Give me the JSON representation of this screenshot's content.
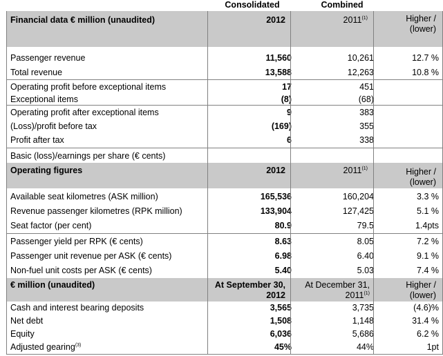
{
  "header": {
    "consolidated": "Consolidated",
    "combined": "Combined"
  },
  "financial": {
    "title": "Financial data € million (unaudited)",
    "col_2012": "2012",
    "col_2011": "2011",
    "col_2011_note": "(1)",
    "change_l1": "Higher /",
    "change_l2": "(lower)",
    "rows": [
      {
        "label": "Passenger revenue",
        "v2012": "11,560",
        "v2011": "10,261",
        "change": "12.7 %"
      },
      {
        "label": "Total revenue",
        "v2012": "13,588",
        "v2011": "12,263",
        "change": "10.8 %"
      },
      {
        "label": "Operating profit before exceptional items",
        "v2012": "17",
        "v2011": "451",
        "change": ""
      },
      {
        "label": "Exceptional items",
        "v2012": "(8)",
        "v2011": "(68)",
        "change": ""
      },
      {
        "label": "Operating profit after exceptional items",
        "v2012": "9",
        "v2011": "383",
        "change": ""
      },
      {
        "label": "(Loss)/profit before tax",
        "v2012": "(169)",
        "v2011": "355",
        "change": ""
      },
      {
        "label": "Profit after tax",
        "v2012": "6",
        "v2011": "338",
        "change": ""
      },
      {
        "label": "Basic (loss)/earnings per share (€ cents)",
        "v2012": "",
        "v2011": "",
        "change": ""
      }
    ]
  },
  "operating": {
    "title": "Operating figures",
    "col_2012": "2012",
    "col_2011": "2011",
    "col_2011_note": "(1)",
    "change_l1": "Higher /",
    "change_l2": "(lower)",
    "rows": [
      {
        "label": "Available seat kilometres (ASK million)",
        "v2012": "165,536",
        "v2011": "160,204",
        "change": "3.3 %"
      },
      {
        "label": "Revenue passenger kilometres (RPK million)",
        "v2012": "133,904",
        "v2011": "127,425",
        "change": "5.1 %"
      },
      {
        "label": "Seat factor (per cent)",
        "v2012": "80.9",
        "v2011": "79.5",
        "change": "1.4pts"
      },
      {
        "label": "Passenger yield per RPK (€ cents)",
        "v2012": "8.63",
        "v2011": "8.05",
        "change": "7.2 %"
      },
      {
        "label": "Passenger unit revenue per ASK (€ cents)",
        "v2012": "6.98",
        "v2011": "6.40",
        "change": "9.1 %"
      },
      {
        "label": "Non-fuel unit costs per ASK (€ cents)",
        "v2012": "5.40",
        "v2011": "5.03",
        "change": "7.4 %"
      }
    ]
  },
  "balance": {
    "title": "€ million (unaudited)",
    "col_2012_l1": "At September 30,",
    "col_2012_l2": "2012",
    "col_2011_l1": "At December 31,",
    "col_2011_l2": "2011",
    "col_2011_note": "(1)",
    "change_l1": "Higher /",
    "change_l2": "(lower)",
    "rows": [
      {
        "label": "Cash and interest bearing deposits",
        "note": "",
        "v2012": "3,565",
        "v2011": "3,735",
        "change": "(4.6)%"
      },
      {
        "label": "Net debt",
        "note": "",
        "v2012": "1,508",
        "v2011": "1,148",
        "change": "31.4 %"
      },
      {
        "label": "Equity",
        "note": "",
        "v2012": "6,036",
        "v2011": "5,686",
        "change": "6.2 %"
      },
      {
        "label": "Adjusted gearing",
        "note": "(3)",
        "v2012": "45%",
        "v2011": "44%",
        "change": "1pt"
      }
    ]
  }
}
